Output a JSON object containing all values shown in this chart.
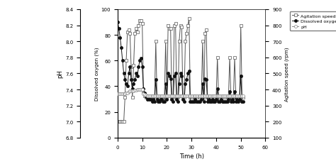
{
  "title": "",
  "xlabel": "Time (h)",
  "ylabel_left": "pH",
  "ylabel_center": "Dissolved oxygen (%)",
  "ylabel_right": "Agitation speed (rpm)",
  "xlim": [
    0,
    60
  ],
  "ylim_ph": [
    6.8,
    8.4
  ],
  "ylim_do": [
    0,
    100
  ],
  "ylim_agit": [
    100,
    900
  ],
  "xticks": [
    0,
    10,
    20,
    30,
    40,
    50,
    60
  ],
  "yticks_ph": [
    6.8,
    7.0,
    7.2,
    7.4,
    7.6,
    7.8,
    8.0,
    8.2,
    8.4
  ],
  "yticks_do": [
    0,
    20,
    40,
    60,
    80,
    100
  ],
  "yticks_agit": [
    100,
    200,
    300,
    400,
    500,
    600,
    700,
    800,
    900
  ],
  "legend_labels": [
    "Agitation speed (rpm)",
    "Dissolved oxygen (%)",
    "pH"
  ],
  "agit_color": "#555555",
  "do_color": "#111111",
  "ph_color": "#888888",
  "agit_marker": "s",
  "do_marker": "o",
  "ph_marker": "o",
  "agit_markersize": 3,
  "do_markersize": 3,
  "ph_markersize": 3,
  "linewidth": 0.7,
  "time": [
    0,
    0.5,
    1,
    1.5,
    2,
    2.5,
    3,
    3.5,
    4,
    4.5,
    5,
    5.5,
    6,
    6.5,
    7,
    7.5,
    8,
    8.5,
    9,
    9.5,
    10,
    10.5,
    11,
    11.5,
    12,
    12.5,
    13,
    13.5,
    14,
    14.5,
    15,
    15.5,
    16,
    16.5,
    17,
    17.5,
    18,
    18.5,
    19,
    19.5,
    20,
    20.5,
    21,
    21.5,
    22,
    22.5,
    23,
    23.5,
    24,
    24.5,
    25,
    25.5,
    26,
    26.5,
    27,
    27.5,
    28,
    28.5,
    29,
    29.5,
    30,
    30.5,
    31,
    31.5,
    32,
    32.5,
    33,
    33.5,
    34,
    34.5,
    35,
    35.5,
    36,
    36.5,
    37,
    37.5,
    38,
    38.5,
    39,
    39.5,
    40,
    40.5,
    41,
    41.5,
    42,
    42.5,
    43,
    43.5,
    44,
    44.5,
    45,
    45.5,
    46,
    46.5,
    47,
    47.5,
    48,
    48.5,
    49,
    49.5,
    50,
    50.5,
    51
  ],
  "agit": [
    200,
    200,
    200,
    200,
    200,
    200,
    350,
    580,
    760,
    770,
    750,
    540,
    350,
    550,
    750,
    780,
    760,
    800,
    830,
    830,
    810,
    380,
    360,
    350,
    350,
    350,
    350,
    350,
    360,
    350,
    350,
    700,
    350,
    350,
    350,
    350,
    350,
    350,
    350,
    700,
    350,
    800,
    780,
    780,
    350,
    350,
    800,
    810,
    350,
    350,
    700,
    800,
    790,
    350,
    350,
    700,
    750,
    800,
    840,
    350,
    350,
    350,
    350,
    350,
    350,
    350,
    350,
    350,
    350,
    700,
    350,
    750,
    770,
    350,
    350,
    350,
    350,
    350,
    350,
    350,
    350,
    600,
    350,
    350,
    350,
    350,
    350,
    350,
    350,
    350,
    350,
    600,
    350,
    350,
    350,
    600,
    350,
    350,
    350,
    350,
    800,
    350,
    350
  ],
  "do": [
    90,
    85,
    78,
    70,
    60,
    50,
    45,
    42,
    40,
    50,
    55,
    45,
    38,
    42,
    45,
    50,
    48,
    55,
    60,
    62,
    55,
    38,
    35,
    32,
    30,
    32,
    30,
    30,
    28,
    30,
    28,
    45,
    30,
    28,
    28,
    30,
    30,
    28,
    28,
    42,
    30,
    50,
    48,
    46,
    30,
    28,
    48,
    50,
    30,
    28,
    42,
    50,
    48,
    30,
    28,
    42,
    45,
    50,
    52,
    28,
    28,
    28,
    28,
    30,
    28,
    28,
    28,
    28,
    30,
    42,
    28,
    46,
    45,
    28,
    30,
    28,
    28,
    30,
    28,
    28,
    30,
    38,
    28,
    28,
    30,
    28,
    28,
    28,
    28,
    28,
    30,
    36,
    28,
    30,
    28,
    36,
    28,
    30,
    28,
    30,
    48,
    28,
    28
  ],
  "ph": [
    7.35,
    7.35,
    7.35,
    7.35,
    7.35,
    7.35,
    7.35,
    7.36,
    7.36,
    7.37,
    7.38,
    7.38,
    7.38,
    7.38,
    7.39,
    7.39,
    7.4,
    7.4,
    7.4,
    7.4,
    7.4,
    7.35,
    7.34,
    7.33,
    7.32,
    7.32,
    7.32,
    7.32,
    7.32,
    7.32,
    7.32,
    7.32,
    7.32,
    7.32,
    7.32,
    7.32,
    7.32,
    7.32,
    7.32,
    7.32,
    7.32,
    7.32,
    7.32,
    7.32,
    7.32,
    7.32,
    7.32,
    7.32,
    7.32,
    7.32,
    7.32,
    7.32,
    7.32,
    7.32,
    7.32,
    7.32,
    7.32,
    7.32,
    7.32,
    7.32,
    7.32,
    7.32,
    7.32,
    7.32,
    7.32,
    7.32,
    7.32,
    7.32,
    7.32,
    7.32,
    7.32,
    7.32,
    7.32,
    7.32,
    7.32,
    7.32,
    7.32,
    7.32,
    7.32,
    7.32,
    7.32,
    7.32,
    7.32,
    7.32,
    7.32,
    7.32,
    7.32,
    7.32,
    7.32,
    7.32,
    7.32,
    7.32,
    7.32,
    7.32,
    7.32,
    7.32,
    7.32,
    7.32,
    7.32,
    7.32,
    7.32,
    7.32,
    7.32
  ]
}
